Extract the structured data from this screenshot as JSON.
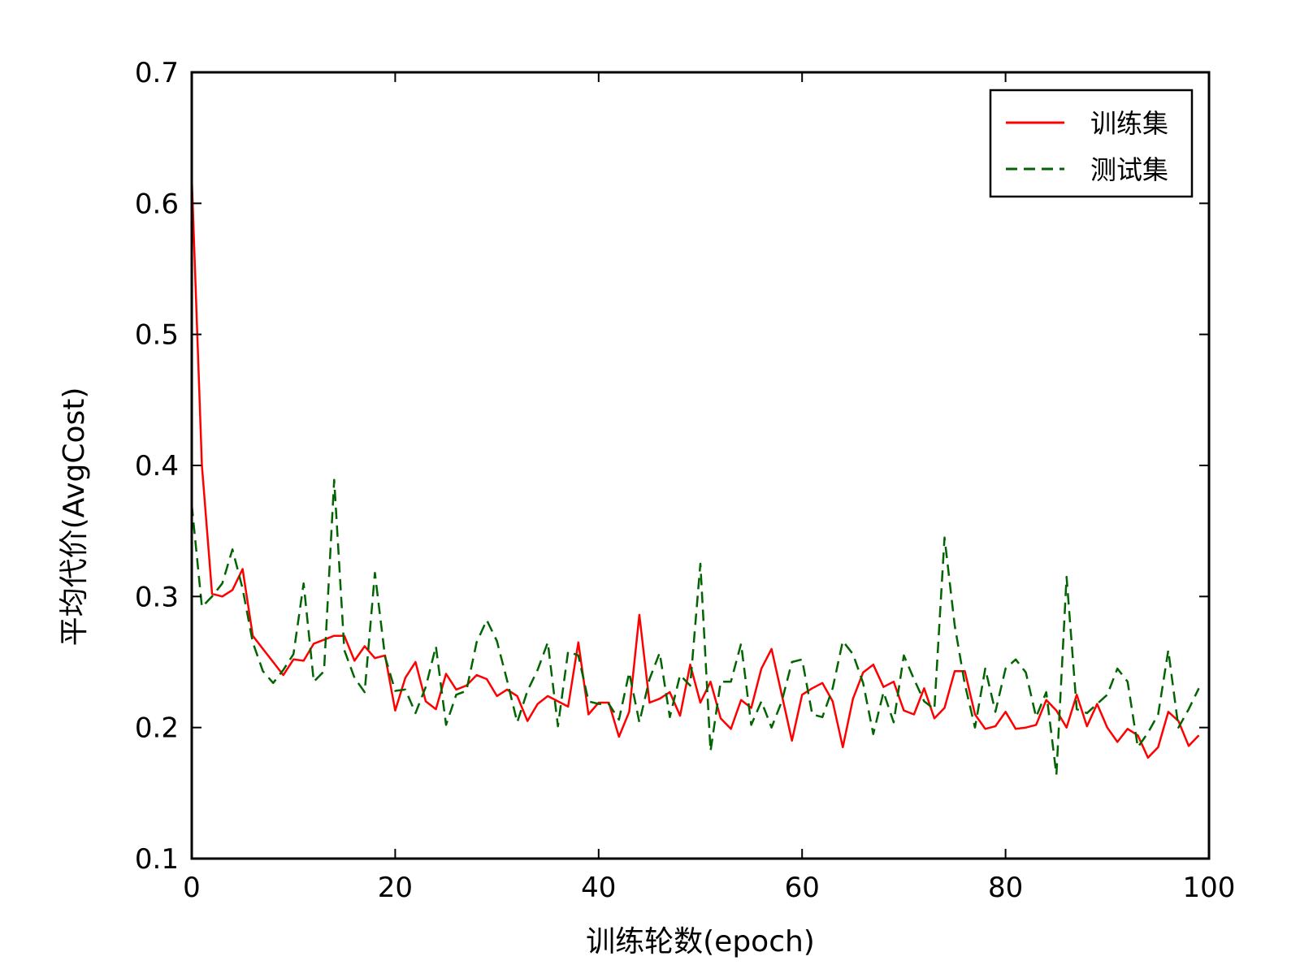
{
  "chart_data": {
    "type": "line",
    "title": "",
    "xlabel": "训练轮数(epoch)",
    "ylabel": "平均代价(AvgCost)",
    "xlim": [
      0,
      100
    ],
    "ylim": [
      0.1,
      0.7
    ],
    "xticks": [
      0,
      20,
      40,
      60,
      80,
      100
    ],
    "yticks": [
      0.1,
      0.2,
      0.3,
      0.4,
      0.5,
      0.6,
      0.7
    ],
    "x_tick_labels": [
      "0",
      "20",
      "40",
      "60",
      "80",
      "100"
    ],
    "y_tick_labels": [
      "0.1",
      "0.2",
      "0.3",
      "0.4",
      "0.5",
      "0.6",
      "0.7"
    ],
    "grid": false,
    "legend_position": "top-right",
    "series": [
      {
        "name": "训练集",
        "color": "#ff0000",
        "style": "solid",
        "x": [
          0,
          1,
          2,
          3,
          4,
          5,
          6,
          7,
          8,
          9,
          10,
          11,
          12,
          13,
          14,
          15,
          16,
          17,
          18,
          19,
          20,
          21,
          22,
          23,
          24,
          25,
          26,
          27,
          28,
          29,
          30,
          31,
          32,
          33,
          34,
          35,
          36,
          37,
          38,
          39,
          40,
          41,
          42,
          43,
          44,
          45,
          46,
          47,
          48,
          49,
          50,
          51,
          52,
          53,
          54,
          55,
          56,
          57,
          58,
          59,
          60,
          61,
          62,
          63,
          64,
          65,
          66,
          67,
          68,
          69,
          70,
          71,
          72,
          73,
          74,
          75,
          76,
          77,
          78,
          79,
          80,
          81,
          82,
          83,
          84,
          85,
          86,
          87,
          88,
          89,
          90,
          91,
          92,
          93,
          94,
          95,
          96,
          97,
          98,
          99
        ],
        "values": [
          0.62,
          0.4,
          0.302,
          0.3,
          0.305,
          0.321,
          0.27,
          0.26,
          0.25,
          0.24,
          0.252,
          0.251,
          0.264,
          0.267,
          0.27,
          0.27,
          0.251,
          0.262,
          0.253,
          0.255,
          0.213,
          0.238,
          0.25,
          0.22,
          0.214,
          0.241,
          0.229,
          0.232,
          0.24,
          0.237,
          0.224,
          0.229,
          0.224,
          0.205,
          0.218,
          0.224,
          0.22,
          0.216,
          0.265,
          0.21,
          0.219,
          0.219,
          0.193,
          0.212,
          0.286,
          0.219,
          0.222,
          0.227,
          0.209,
          0.248,
          0.219,
          0.235,
          0.207,
          0.199,
          0.221,
          0.215,
          0.245,
          0.26,
          0.225,
          0.19,
          0.225,
          0.23,
          0.234,
          0.22,
          0.185,
          0.222,
          0.242,
          0.248,
          0.231,
          0.235,
          0.213,
          0.21,
          0.23,
          0.207,
          0.215,
          0.243,
          0.243,
          0.21,
          0.199,
          0.201,
          0.212,
          0.199,
          0.2,
          0.202,
          0.221,
          0.213,
          0.2,
          0.225,
          0.201,
          0.218,
          0.2,
          0.189,
          0.199,
          0.194,
          0.177,
          0.185,
          0.212,
          0.205,
          0.186,
          0.194
        ]
      },
      {
        "name": "测试集",
        "color": "#006400",
        "style": "dashed",
        "x": [
          0,
          1,
          2,
          3,
          4,
          5,
          6,
          7,
          8,
          9,
          10,
          11,
          12,
          13,
          14,
          15,
          16,
          17,
          18,
          19,
          20,
          21,
          22,
          23,
          24,
          25,
          26,
          27,
          28,
          29,
          30,
          31,
          32,
          33,
          34,
          35,
          36,
          37,
          38,
          39,
          40,
          41,
          42,
          43,
          44,
          45,
          46,
          47,
          48,
          49,
          50,
          51,
          52,
          53,
          54,
          55,
          56,
          57,
          58,
          59,
          60,
          61,
          62,
          63,
          64,
          65,
          66,
          67,
          68,
          69,
          70,
          71,
          72,
          73,
          74,
          75,
          76,
          77,
          78,
          79,
          80,
          81,
          82,
          83,
          84,
          85,
          86,
          87,
          88,
          89,
          90,
          91,
          92,
          93,
          94,
          95,
          96,
          97,
          98,
          99
        ],
        "values": [
          0.37,
          0.292,
          0.3,
          0.31,
          0.336,
          0.306,
          0.265,
          0.243,
          0.234,
          0.244,
          0.256,
          0.31,
          0.235,
          0.243,
          0.389,
          0.259,
          0.238,
          0.227,
          0.318,
          0.254,
          0.228,
          0.229,
          0.211,
          0.231,
          0.262,
          0.202,
          0.225,
          0.228,
          0.265,
          0.282,
          0.266,
          0.236,
          0.204,
          0.228,
          0.244,
          0.265,
          0.201,
          0.258,
          0.255,
          0.22,
          0.218,
          0.218,
          0.206,
          0.242,
          0.204,
          0.237,
          0.257,
          0.208,
          0.24,
          0.232,
          0.325,
          0.182,
          0.235,
          0.235,
          0.264,
          0.202,
          0.22,
          0.2,
          0.22,
          0.25,
          0.252,
          0.21,
          0.208,
          0.23,
          0.266,
          0.256,
          0.234,
          0.195,
          0.227,
          0.204,
          0.255,
          0.237,
          0.22,
          0.214,
          0.345,
          0.278,
          0.233,
          0.2,
          0.245,
          0.212,
          0.245,
          0.252,
          0.242,
          0.208,
          0.227,
          0.164,
          0.315,
          0.214,
          0.211,
          0.218,
          0.225,
          0.245,
          0.235,
          0.185,
          0.196,
          0.21,
          0.259,
          0.2,
          0.214,
          0.23
        ]
      }
    ]
  }
}
